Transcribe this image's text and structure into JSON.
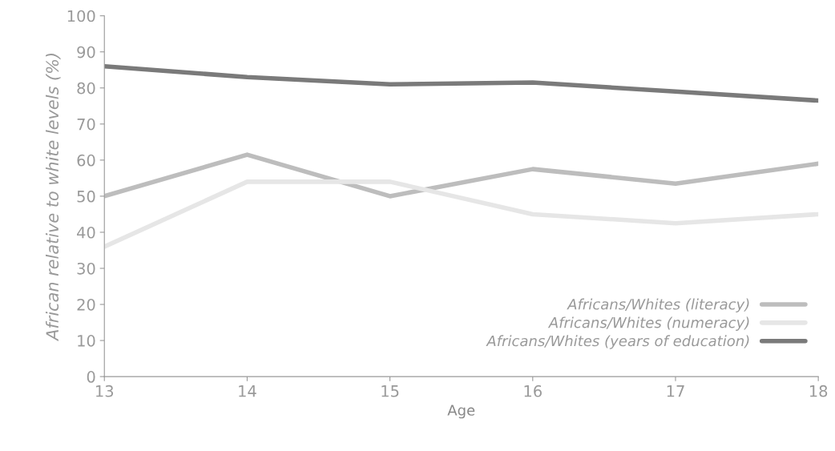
{
  "chart_data": {
    "type": "line",
    "xlabel": "Age",
    "ylabel": "African relative to white levels (%)",
    "x": [
      13,
      14,
      15,
      16,
      17,
      18
    ],
    "xlim": [
      13,
      18
    ],
    "xticks": [
      13,
      14,
      15,
      16,
      17,
      18
    ],
    "ylim": [
      0,
      100
    ],
    "yticks": [
      0,
      10,
      20,
      30,
      40,
      50,
      60,
      70,
      80,
      90,
      100
    ],
    "grid": false,
    "legend": "bottom right",
    "marker": "none",
    "line_style": "solid",
    "series": [
      {
        "name": "Africans/Whites (literacy)",
        "color": "#bdbdbd",
        "values": [
          50,
          61.5,
          50,
          57.5,
          53.5,
          59
        ]
      },
      {
        "name": "Africans/Whites (numeracy)",
        "color": "#e6e6e6",
        "values": [
          36,
          54,
          54,
          45,
          42.5,
          45
        ]
      },
      {
        "name": "Africans/Whites (years of education)",
        "color": "#7a7a7a",
        "values": [
          86,
          83,
          81,
          81.5,
          79,
          76.5
        ]
      }
    ]
  }
}
